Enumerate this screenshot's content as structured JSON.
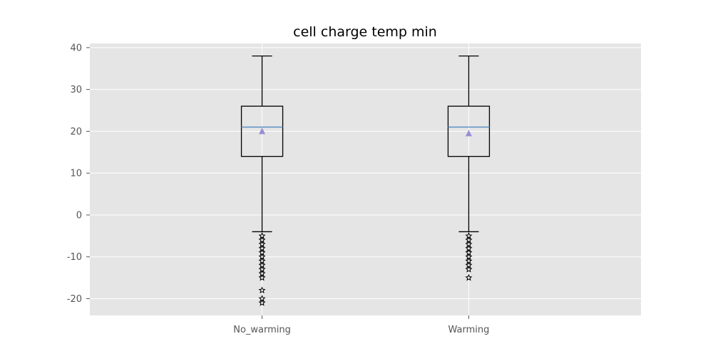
{
  "chart_data": {
    "type": "box",
    "title": "cell charge temp min",
    "xlabel": "",
    "ylabel": "",
    "ylim": [
      -24,
      41
    ],
    "yticks": [
      -20,
      -10,
      0,
      10,
      20,
      30,
      40
    ],
    "ytick_labels": [
      "-20",
      "-10",
      "0",
      "10",
      "20",
      "30",
      "40"
    ],
    "grid": true,
    "categories": [
      "No_warming",
      "Warming"
    ],
    "boxes": [
      {
        "category": "No_warming",
        "whisker_low": -4,
        "q1": 14,
        "median": 21,
        "q3": 26,
        "whisker_high": 38,
        "mean": 20,
        "outliers": [
          -5,
          -6,
          -7,
          -8,
          -9,
          -10,
          -11,
          -12,
          -13,
          -14,
          -15,
          -18,
          -20,
          -21
        ]
      },
      {
        "category": "Warming",
        "whisker_low": -4,
        "q1": 14,
        "median": 21,
        "q3": 26,
        "whisker_high": 38,
        "mean": 19.5,
        "outliers": [
          -5,
          -6,
          -7,
          -8,
          -9,
          -10,
          -11,
          -12,
          -13,
          -15
        ]
      }
    ],
    "colors": {
      "plot_background": "#e5e5e5",
      "grid": "#ffffff",
      "box": "#000000",
      "median": "#5a8fc0",
      "mean_marker": "#988ed5",
      "outlier": "#000000"
    }
  }
}
